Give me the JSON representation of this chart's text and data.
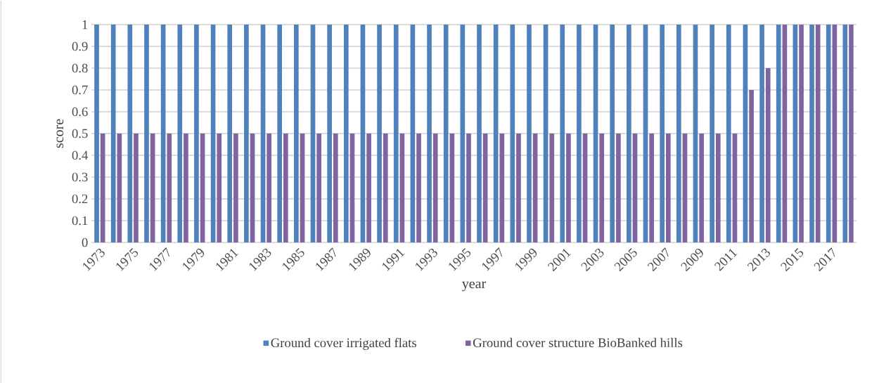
{
  "chart_data": {
    "type": "bar",
    "xlabel": "year",
    "ylabel": "score",
    "categories": [
      "1973",
      null,
      "1975",
      null,
      "1977",
      null,
      "1979",
      null,
      "1981",
      null,
      "1983",
      null,
      "1985",
      null,
      "1987",
      null,
      "1989",
      null,
      "1991",
      null,
      "1993",
      null,
      "1995",
      null,
      "1997",
      null,
      "1999",
      null,
      "2001",
      null,
      "2003",
      null,
      "2005",
      null,
      "2007",
      null,
      "2009",
      null,
      "2011",
      null,
      "2013",
      null,
      "2015",
      null,
      "2017",
      null
    ],
    "series": [
      {
        "name": "Ground cover irrigated flats",
        "color": "#4f81bd",
        "values": [
          1,
          1,
          1,
          1,
          1,
          1,
          1,
          1,
          1,
          1,
          1,
          1,
          1,
          1,
          1,
          1,
          1,
          1,
          1,
          1,
          1,
          1,
          1,
          1,
          1,
          1,
          1,
          1,
          1,
          1,
          1,
          1,
          1,
          1,
          1,
          1,
          1,
          1,
          1,
          1,
          1,
          1,
          1,
          1,
          1,
          1
        ]
      },
      {
        "name": "Ground cover structure BioBanked hills",
        "color": "#8064a2",
        "values": [
          0.5,
          0.5,
          0.5,
          0.5,
          0.5,
          0.5,
          0.5,
          0.5,
          0.5,
          0.5,
          0.5,
          0.5,
          0.5,
          0.5,
          0.5,
          0.5,
          0.5,
          0.5,
          0.5,
          0.5,
          0.5,
          0.5,
          0.5,
          0.5,
          0.5,
          0.5,
          0.5,
          0.5,
          0.5,
          0.5,
          0.5,
          0.5,
          0.5,
          0.5,
          0.5,
          0.5,
          0.5,
          0.5,
          0.5,
          0.7,
          0.8,
          1,
          1,
          1,
          1,
          1
        ]
      }
    ],
    "ylim": [
      0,
      1
    ],
    "yticks": [
      0,
      0.1,
      0.2,
      0.3,
      0.4,
      0.5,
      0.6,
      0.7,
      0.8,
      0.9,
      1
    ],
    "grid": "y",
    "legend": "bottom"
  }
}
